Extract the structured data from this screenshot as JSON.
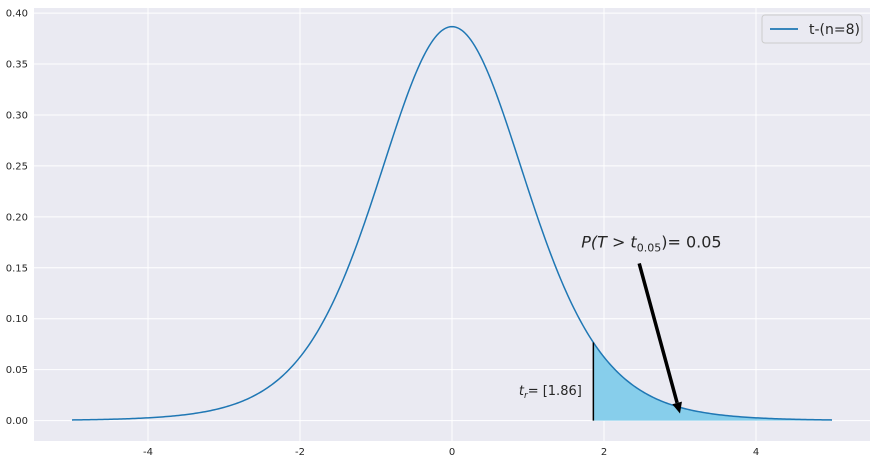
{
  "chart_data": {
    "type": "line",
    "title": "",
    "xlabel": "",
    "ylabel": "",
    "xlim": [
      -5.5,
      5.5
    ],
    "ylim": [
      -0.02,
      0.405
    ],
    "xticks": [
      -4,
      -2,
      0,
      2,
      4
    ],
    "xtick_labels": [
      "-4",
      "-2",
      "0",
      "2",
      "4"
    ],
    "yticks": [
      0.0,
      0.05,
      0.1,
      0.15,
      0.2,
      0.25,
      0.3,
      0.35,
      0.4
    ],
    "ytick_labels": [
      "0.00",
      "0.05",
      "0.10",
      "0.15",
      "0.20",
      "0.25",
      "0.30",
      "0.35",
      "0.40"
    ],
    "grid": true,
    "legend_position": "top-right",
    "series": [
      {
        "name": "t-(n=8)",
        "color": "#1f77b4",
        "distribution": "student-t",
        "df": 8,
        "x_range": [
          -5,
          5
        ]
      }
    ],
    "shaded_region": {
      "x_from": 1.86,
      "x_to": 5,
      "color": "#87ceeb"
    },
    "critical_line": {
      "x": 1.86,
      "color": "#000000"
    },
    "annotations": {
      "critical_label": {
        "var": "t",
        "sub": "r",
        "rest": "= [1.86]",
        "x": 0.88,
        "y": 0.025
      },
      "probability_label": {
        "prefix": "P(T > t",
        "sub": "0.05",
        "suffix": ")= 0.05",
        "x": 1.7,
        "y": 0.17,
        "arrow_target": [
          3.0,
          0.007
        ]
      }
    }
  }
}
